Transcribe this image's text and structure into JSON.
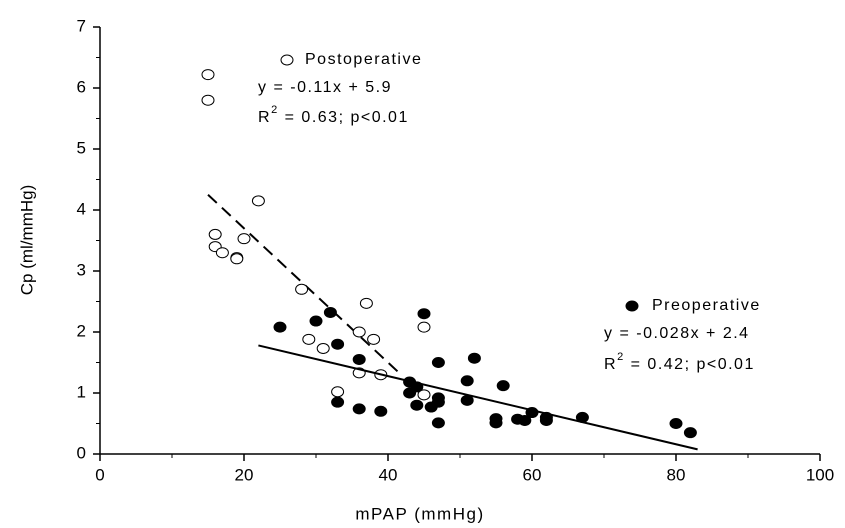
{
  "chart_data": {
    "type": "scatter",
    "xlabel": "mPAP (mmHg)",
    "ylabel": "Cp (ml/mmHg)",
    "xlim": [
      0,
      100
    ],
    "xticks": [
      0,
      20,
      40,
      60,
      80,
      100
    ],
    "xminorticks": [
      10,
      30,
      50,
      70,
      90
    ],
    "ylim": [
      0,
      7
    ],
    "yticks": [
      0,
      1,
      2,
      3,
      4,
      5,
      6,
      7
    ],
    "yminorticks": [
      0.5,
      1.5,
      2.5,
      3.5,
      4.5,
      5.5,
      6.5
    ],
    "series": [
      {
        "name": "Postoperative",
        "marker": "open",
        "color": "#000000",
        "x": [
          15,
          15,
          16,
          16,
          17,
          19,
          19,
          20,
          22,
          28,
          29,
          31,
          33,
          36,
          36,
          37,
          38,
          39,
          45,
          45
        ],
        "values": [
          6.22,
          5.8,
          3.6,
          3.4,
          3.3,
          3.22,
          3.2,
          3.53,
          4.15,
          2.7,
          1.88,
          1.73,
          1.02,
          2.0,
          1.33,
          2.47,
          1.88,
          1.3,
          2.08,
          0.97
        ],
        "equation": "y = -0.11x + 5.9",
        "r2": [
          "R",
          "2",
          " = 0.63; p<0.01"
        ],
        "trend_x": [
          15,
          42
        ],
        "trend_values": [
          4.25,
          1.28
        ],
        "trend_dashed": true
      },
      {
        "name": "Preoperative",
        "marker": "filled",
        "color": "#000000",
        "x": [
          25,
          30,
          32,
          33,
          33,
          36,
          36,
          39,
          43,
          43,
          44,
          44,
          45,
          46,
          47,
          47,
          47,
          47,
          51,
          51,
          52,
          55,
          55,
          56,
          58,
          59,
          60,
          62,
          62,
          67,
          80,
          82
        ],
        "values": [
          2.08,
          2.18,
          2.32,
          1.8,
          0.85,
          1.55,
          0.74,
          0.7,
          1.18,
          1.0,
          1.1,
          0.8,
          2.3,
          0.77,
          1.5,
          0.92,
          0.85,
          0.51,
          1.2,
          0.88,
          1.57,
          0.58,
          0.51,
          1.12,
          0.57,
          0.55,
          0.68,
          0.6,
          0.55,
          0.6,
          0.5,
          0.35
        ],
        "equation": "y = -0.028x + 2.4",
        "r2": [
          "R",
          "2",
          " = 0.42; p<0.01"
        ],
        "trend_x": [
          22,
          83
        ],
        "trend_values": [
          1.78,
          0.076
        ],
        "trend_dashed": false
      }
    ]
  }
}
